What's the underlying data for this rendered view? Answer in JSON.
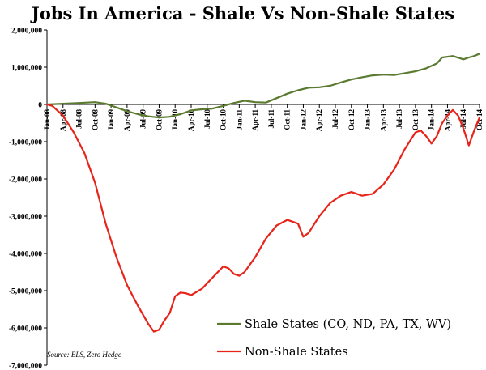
{
  "chart_data": {
    "type": "line",
    "title": "Jobs In America - Shale Vs Non-Shale States",
    "source": "Source: BLS, Zero Hedge",
    "ylim": [
      -7000000,
      2000000
    ],
    "y_ticks": [
      2000000,
      1000000,
      0,
      -1000000,
      -2000000,
      -3000000,
      -4000000,
      -5000000,
      -6000000,
      -7000000
    ],
    "y_tick_labels": [
      "2,000,000",
      "1,000,000",
      "0",
      "-1,000,000",
      "-2,000,000",
      "-3,000,000",
      "-4,000,000",
      "-5,000,000",
      "-6,000,000",
      "-7,000,000"
    ],
    "x_tick_labels": [
      "Jan-08",
      "Apr-08",
      "Jul-08",
      "Oct-08",
      "Jan-09",
      "Apr-09",
      "Jul-09",
      "Oct-09",
      "Jan-10",
      "Apr-10",
      "Jul-10",
      "Oct-10",
      "Jan-11",
      "Apr-11",
      "Jul-11",
      "Oct-11",
      "Jan-12",
      "Apr-12",
      "Jul-12",
      "Oct-12",
      "Jan-13",
      "Apr-13",
      "Jul-13",
      "Oct-13",
      "Jan-14",
      "Apr-14",
      "Jul-14",
      "Oct-14"
    ],
    "x_index_max": 81,
    "grid": false,
    "legend": [
      {
        "name": "Shale States (CO, ND, PA, TX, WV)",
        "color": "#5a7a30"
      },
      {
        "name": "Non-Shale States",
        "color": "#e8241a"
      }
    ],
    "series": [
      {
        "name": "Shale States (CO, ND, PA, TX, WV)",
        "color": "#5a7a30",
        "points": [
          [
            0,
            0
          ],
          [
            3,
            20000
          ],
          [
            6,
            40000
          ],
          [
            9,
            60000
          ],
          [
            11,
            20000
          ],
          [
            13,
            -80000
          ],
          [
            15,
            -180000
          ],
          [
            17,
            -260000
          ],
          [
            19,
            -320000
          ],
          [
            21,
            -350000
          ],
          [
            23,
            -330000
          ],
          [
            25,
            -260000
          ],
          [
            27,
            -160000
          ],
          [
            29,
            -130000
          ],
          [
            31,
            -110000
          ],
          [
            33,
            -40000
          ],
          [
            35,
            40000
          ],
          [
            37,
            100000
          ],
          [
            39,
            60000
          ],
          [
            41,
            50000
          ],
          [
            43,
            170000
          ],
          [
            45,
            290000
          ],
          [
            47,
            380000
          ],
          [
            49,
            450000
          ],
          [
            51,
            460000
          ],
          [
            53,
            500000
          ],
          [
            55,
            590000
          ],
          [
            57,
            670000
          ],
          [
            59,
            730000
          ],
          [
            61,
            780000
          ],
          [
            63,
            800000
          ],
          [
            65,
            790000
          ],
          [
            67,
            840000
          ],
          [
            69,
            890000
          ],
          [
            71,
            970000
          ],
          [
            73,
            1100000
          ],
          [
            74,
            1260000
          ],
          [
            76,
            1300000
          ],
          [
            78,
            1210000
          ],
          [
            79,
            1260000
          ],
          [
            80,
            1300000
          ],
          [
            81,
            1360000
          ]
        ]
      },
      {
        "name": "Non-Shale States",
        "color": "#e8241a",
        "points": [
          [
            0,
            0
          ],
          [
            1,
            -40000
          ],
          [
            3,
            -300000
          ],
          [
            5,
            -750000
          ],
          [
            7,
            -1300000
          ],
          [
            9,
            -2100000
          ],
          [
            11,
            -3200000
          ],
          [
            13,
            -4100000
          ],
          [
            15,
            -4850000
          ],
          [
            17,
            -5400000
          ],
          [
            19,
            -5900000
          ],
          [
            20,
            -6100000
          ],
          [
            21,
            -6050000
          ],
          [
            22,
            -5800000
          ],
          [
            23,
            -5600000
          ],
          [
            24,
            -5150000
          ],
          [
            25,
            -5050000
          ],
          [
            26,
            -5070000
          ],
          [
            27,
            -5120000
          ],
          [
            29,
            -4950000
          ],
          [
            31,
            -4650000
          ],
          [
            33,
            -4350000
          ],
          [
            34,
            -4400000
          ],
          [
            35,
            -4550000
          ],
          [
            36,
            -4600000
          ],
          [
            37,
            -4500000
          ],
          [
            39,
            -4100000
          ],
          [
            41,
            -3600000
          ],
          [
            43,
            -3250000
          ],
          [
            45,
            -3100000
          ],
          [
            47,
            -3200000
          ],
          [
            48,
            -3550000
          ],
          [
            49,
            -3450000
          ],
          [
            51,
            -3000000
          ],
          [
            53,
            -2650000
          ],
          [
            55,
            -2450000
          ],
          [
            57,
            -2350000
          ],
          [
            59,
            -2450000
          ],
          [
            61,
            -2400000
          ],
          [
            63,
            -2150000
          ],
          [
            65,
            -1750000
          ],
          [
            67,
            -1200000
          ],
          [
            69,
            -750000
          ],
          [
            70,
            -700000
          ],
          [
            71,
            -850000
          ],
          [
            72,
            -1050000
          ],
          [
            73,
            -850000
          ],
          [
            74,
            -500000
          ],
          [
            75,
            -300000
          ],
          [
            76,
            -150000
          ],
          [
            77,
            -300000
          ],
          [
            78,
            -650000
          ],
          [
            79,
            -1100000
          ],
          [
            80,
            -700000
          ],
          [
            81,
            -350000
          ]
        ]
      }
    ]
  }
}
